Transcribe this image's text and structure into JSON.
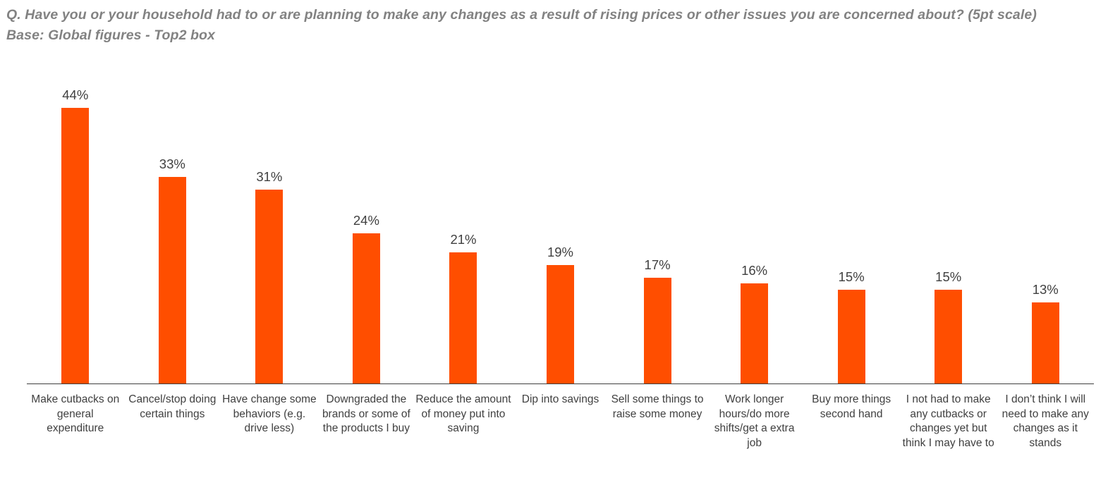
{
  "header": {
    "question": "Q. Have you or your household had to or are planning to make any changes as a result of rising prices or other issues you are concerned about? (5pt scale)",
    "base": "Base: Global figures - Top2 box"
  },
  "chart_data": {
    "type": "bar",
    "categories": [
      "Make cutbacks on general expenditure",
      "Cancel/stop doing certain things",
      "Have change some behaviors (e.g. drive less)",
      "Downgraded the brands or some of the products I buy",
      "Reduce the amount of money put into saving",
      "Dip into savings",
      "Sell some things to raise some money",
      "Work longer hours/do more shifts/get a extra job",
      "Buy more things second hand",
      "I not had to make any cutbacks or changes yet but think I may have to",
      "I don’t think I will need to make any changes as it stands"
    ],
    "values": [
      44,
      33,
      31,
      24,
      21,
      19,
      17,
      16,
      15,
      15,
      13
    ],
    "value_labels": [
      "44%",
      "33%",
      "31%",
      "24%",
      "21%",
      "19%",
      "17%",
      "16%",
      "15%",
      "15%",
      "13%"
    ],
    "title": "Q. Have you or your household had to or are planning to make any changes as a result of rising prices or other issues you are concerned about? (5pt scale)",
    "subtitle": "Base: Global figures - Top2 box",
    "xlabel": "",
    "ylabel": "",
    "ylim": [
      0,
      50
    ],
    "grid": false,
    "legend": false,
    "value_label_position": "above-bar",
    "bar_color": "#FF4E00",
    "value_label_color": "#404040",
    "category_label_color": "#404040",
    "axis_color": "#3F3F3F",
    "title_color": "#828282"
  }
}
